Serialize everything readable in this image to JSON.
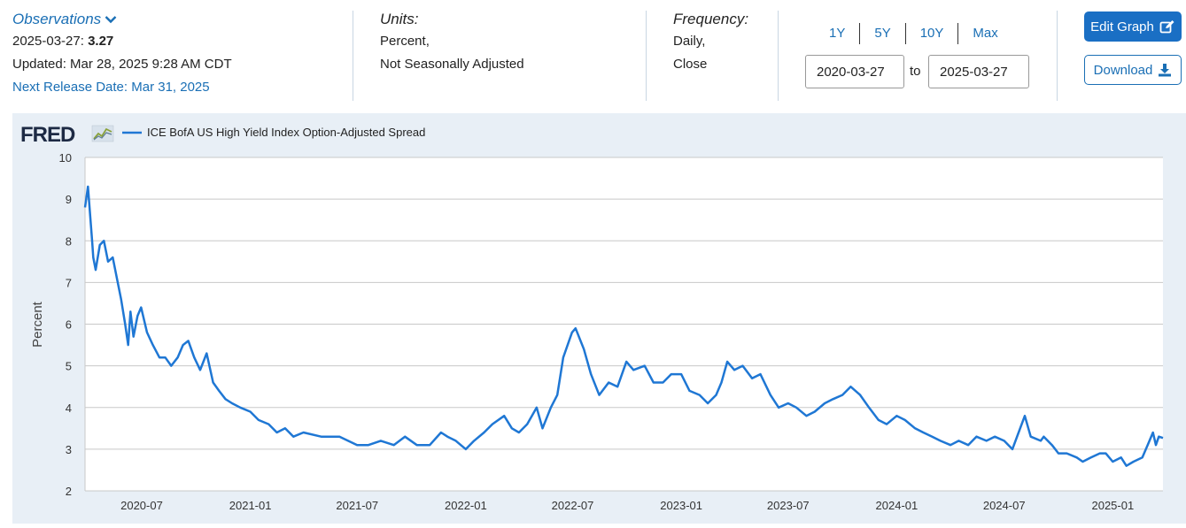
{
  "observations": {
    "title": "Observations",
    "date_label": "2025-03-27:",
    "value": "3.27",
    "updated": "Updated: Mar 28, 2025 9:28 AM CDT",
    "next_release": "Next Release Date: Mar 31, 2025"
  },
  "units": {
    "title": "Units:",
    "line1": "Percent,",
    "line2": "Not Seasonally Adjusted"
  },
  "frequency": {
    "title": "Frequency:",
    "line1": "Daily,",
    "line2": "Close"
  },
  "ranges": [
    "1Y",
    "5Y",
    "10Y",
    "Max"
  ],
  "date_from": "2020-03-27",
  "date_to": "2025-03-27",
  "to_label": "to",
  "edit_label": "Edit Graph",
  "download_label": "Download",
  "brand": "FRED",
  "colors": {
    "accent": "#1a6fb5",
    "series": "#1f77d4",
    "panel": "#e8eff6",
    "grid": "#c8c8c8"
  },
  "icons": [
    "chevron-down-icon",
    "edit-icon",
    "download-icon",
    "fred-logo-chart-icon"
  ],
  "chart_data": {
    "type": "line",
    "title": "",
    "xlabel": "",
    "ylabel": "Percent",
    "ylim": [
      2,
      10
    ],
    "yticks": [
      2,
      3,
      4,
      5,
      6,
      7,
      8,
      9,
      10
    ],
    "xlim": [
      "2020-03-27",
      "2025-03-27"
    ],
    "xticks": [
      "2020-07",
      "2021-01",
      "2021-07",
      "2022-01",
      "2022-07",
      "2023-01",
      "2023-07",
      "2024-01",
      "2024-07",
      "2025-01"
    ],
    "grid": "horizontal",
    "legend": "top-left",
    "series": [
      {
        "name": "ICE BofA US High Yield Index Option-Adjusted Spread",
        "x": [
          "2020-03-27",
          "2020-04-01",
          "2020-04-08",
          "2020-04-10",
          "2020-04-14",
          "2020-04-21",
          "2020-04-28",
          "2020-05-05",
          "2020-05-13",
          "2020-05-20",
          "2020-05-27",
          "2020-06-03",
          "2020-06-08",
          "2020-06-12",
          "2020-06-17",
          "2020-06-24",
          "2020-06-30",
          "2020-07-10",
          "2020-07-20",
          "2020-07-31",
          "2020-08-10",
          "2020-08-20",
          "2020-08-31",
          "2020-09-09",
          "2020-09-18",
          "2020-09-28",
          "2020-10-08",
          "2020-10-19",
          "2020-10-30",
          "2020-11-09",
          "2020-11-20",
          "2020-12-01",
          "2020-12-15",
          "2021-01-01",
          "2021-01-15",
          "2021-02-01",
          "2021-02-15",
          "2021-03-01",
          "2021-03-15",
          "2021-04-01",
          "2021-05-01",
          "2021-06-01",
          "2021-07-01",
          "2021-07-20",
          "2021-08-10",
          "2021-09-01",
          "2021-09-20",
          "2021-10-10",
          "2021-11-01",
          "2021-11-20",
          "2021-12-01",
          "2021-12-15",
          "2022-01-01",
          "2022-01-15",
          "2022-02-01",
          "2022-02-15",
          "2022-03-07",
          "2022-03-20",
          "2022-04-01",
          "2022-04-15",
          "2022-05-01",
          "2022-05-11",
          "2022-05-25",
          "2022-06-05",
          "2022-06-15",
          "2022-06-30",
          "2022-07-06",
          "2022-07-20",
          "2022-08-01",
          "2022-08-15",
          "2022-08-31",
          "2022-09-15",
          "2022-09-30",
          "2022-10-12",
          "2022-10-31",
          "2022-11-15",
          "2022-12-01",
          "2022-12-15",
          "2023-01-01",
          "2023-01-15",
          "2023-02-01",
          "2023-02-15",
          "2023-03-01",
          "2023-03-10",
          "2023-03-20",
          "2023-04-01",
          "2023-04-15",
          "2023-05-01",
          "2023-05-15",
          "2023-06-01",
          "2023-06-15",
          "2023-07-01",
          "2023-07-15",
          "2023-08-01",
          "2023-08-15",
          "2023-09-01",
          "2023-09-15",
          "2023-10-01",
          "2023-10-15",
          "2023-10-31",
          "2023-11-15",
          "2023-12-01",
          "2023-12-15",
          "2024-01-01",
          "2024-01-15",
          "2024-02-01",
          "2024-02-15",
          "2024-03-01",
          "2024-03-15",
          "2024-04-01",
          "2024-04-15",
          "2024-05-01",
          "2024-05-15",
          "2024-06-01",
          "2024-06-15",
          "2024-07-01",
          "2024-07-15",
          "2024-08-05",
          "2024-08-15",
          "2024-09-01",
          "2024-09-06",
          "2024-09-20",
          "2024-10-01",
          "2024-10-15",
          "2024-11-01",
          "2024-11-11",
          "2024-11-25",
          "2024-12-10",
          "2024-12-20",
          "2025-01-01",
          "2025-01-15",
          "2025-01-24",
          "2025-02-05",
          "2025-02-20",
          "2025-03-01",
          "2025-03-10",
          "2025-03-15",
          "2025-03-20",
          "2025-03-27"
        ],
        "values": [
          8.8,
          9.3,
          8.0,
          7.6,
          7.3,
          7.9,
          8.0,
          7.5,
          7.6,
          7.1,
          6.6,
          6.0,
          5.5,
          6.3,
          5.7,
          6.2,
          6.4,
          5.8,
          5.5,
          5.2,
          5.2,
          5.0,
          5.2,
          5.5,
          5.6,
          5.2,
          4.9,
          5.3,
          4.6,
          4.4,
          4.2,
          4.1,
          4.0,
          3.9,
          3.7,
          3.6,
          3.4,
          3.5,
          3.3,
          3.4,
          3.3,
          3.3,
          3.1,
          3.1,
          3.2,
          3.1,
          3.3,
          3.1,
          3.1,
          3.4,
          3.3,
          3.2,
          3.0,
          3.2,
          3.4,
          3.6,
          3.8,
          3.5,
          3.4,
          3.6,
          4.0,
          3.5,
          4.0,
          4.3,
          5.2,
          5.8,
          5.9,
          5.4,
          4.8,
          4.3,
          4.6,
          4.5,
          5.1,
          4.9,
          5.0,
          4.6,
          4.6,
          4.8,
          4.8,
          4.4,
          4.3,
          4.1,
          4.3,
          4.6,
          5.1,
          4.9,
          5.0,
          4.7,
          4.8,
          4.3,
          4.0,
          4.1,
          4.0,
          3.8,
          3.9,
          4.1,
          4.2,
          4.3,
          4.5,
          4.3,
          4.0,
          3.7,
          3.6,
          3.8,
          3.7,
          3.5,
          3.4,
          3.3,
          3.2,
          3.1,
          3.2,
          3.1,
          3.3,
          3.2,
          3.3,
          3.2,
          3.0,
          3.8,
          3.3,
          3.2,
          3.3,
          3.1,
          2.9,
          2.9,
          2.8,
          2.7,
          2.8,
          2.9,
          2.9,
          2.7,
          2.8,
          2.6,
          2.7,
          2.8,
          3.1,
          3.4,
          3.1,
          3.3,
          3.27
        ]
      }
    ]
  }
}
